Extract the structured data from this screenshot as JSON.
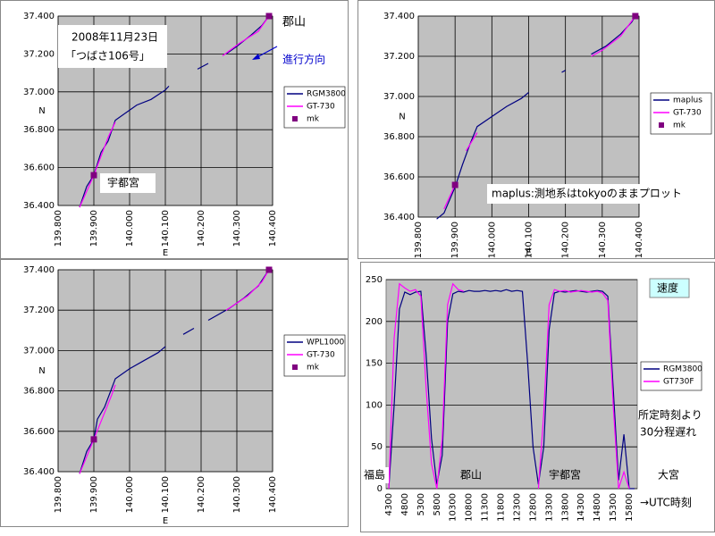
{
  "chart_data": [
    {
      "type": "line",
      "xlabel": "E",
      "ylabel": "N",
      "xlim": [
        139.8,
        140.4
      ],
      "ylim": [
        36.4,
        37.4
      ],
      "xticks": [
        {
          "value": 139.8,
          "label": "139.800"
        },
        {
          "value": 139.9,
          "label": "139.900"
        },
        {
          "value": 140.0,
          "label": "140.000"
        },
        {
          "value": 140.1,
          "label": "140.100"
        },
        {
          "value": 140.2,
          "label": "140.200"
        },
        {
          "value": 140.3,
          "label": "140.300"
        },
        {
          "value": 140.4,
          "label": "140.400"
        }
      ],
      "yticks": [
        {
          "value": 36.4,
          "label": "36.400"
        },
        {
          "value": 36.6,
          "label": "36.600"
        },
        {
          "value": 36.8,
          "label": "36.800"
        },
        {
          "value": 37.0,
          "label": "37.000"
        },
        {
          "value": 37.2,
          "label": "37.200"
        },
        {
          "value": 37.4,
          "label": "37.400"
        }
      ],
      "grid": true,
      "series": [
        {
          "name": "RGM3800",
          "color": "#000080",
          "x": [
            139.86,
            139.88,
            139.9,
            139.92,
            139.94,
            139.96,
            139.99,
            140.02,
            140.06,
            140.1,
            140.11,
            null,
            140.19,
            140.22,
            null,
            140.27,
            140.3,
            140.34,
            140.37,
            140.39
          ],
          "values": [
            36.39,
            36.5,
            36.56,
            36.68,
            36.74,
            36.85,
            36.89,
            36.93,
            36.96,
            37.01,
            37.03,
            null,
            37.12,
            37.15,
            null,
            37.2,
            37.24,
            37.3,
            37.35,
            37.4
          ]
        },
        {
          "name": "GT-730",
          "color": "#ff00ff",
          "x": [
            139.86,
            139.9,
            139.94,
            139.96,
            null,
            140.26,
            140.31,
            140.36,
            140.39
          ],
          "values": [
            36.39,
            36.56,
            36.76,
            36.84,
            null,
            37.19,
            37.26,
            37.32,
            37.4
          ]
        },
        {
          "name": "mk",
          "color": "#800080",
          "style": "marker",
          "x": [
            139.9,
            140.39
          ],
          "values": [
            36.56,
            37.4
          ]
        }
      ],
      "annotations": [
        "2008年11月23日",
        "「つばさ106号」",
        "郡山",
        "進行方向",
        "宇都宮"
      ]
    },
    {
      "type": "line",
      "xlabel": "E",
      "ylabel": "N",
      "xlim": [
        139.8,
        140.4
      ],
      "ylim": [
        36.4,
        37.4
      ],
      "xticks": [
        {
          "value": 139.8,
          "label": "139.800"
        },
        {
          "value": 139.9,
          "label": "139.900"
        },
        {
          "value": 140.0,
          "label": "140.000"
        },
        {
          "value": 140.1,
          "label": "140.100"
        },
        {
          "value": 140.2,
          "label": "140.200"
        },
        {
          "value": 140.3,
          "label": "140.300"
        },
        {
          "value": 140.4,
          "label": "140.400"
        }
      ],
      "yticks": [
        {
          "value": 36.4,
          "label": "36.400"
        },
        {
          "value": 36.6,
          "label": "36.600"
        },
        {
          "value": 36.8,
          "label": "36.800"
        },
        {
          "value": 37.0,
          "label": "37.000"
        },
        {
          "value": 37.2,
          "label": "37.200"
        },
        {
          "value": 37.4,
          "label": "37.400"
        }
      ],
      "grid": true,
      "series": [
        {
          "name": "maplus",
          "color": "#000080",
          "x": [
            139.85,
            139.87,
            139.9,
            139.92,
            139.94,
            139.96,
            140.0,
            140.04,
            140.08,
            140.1,
            null,
            140.19,
            140.2,
            null,
            140.27,
            140.31,
            140.35,
            140.38,
            140.39
          ],
          "values": [
            36.39,
            36.42,
            36.55,
            36.66,
            36.76,
            36.85,
            36.9,
            36.95,
            36.99,
            37.02,
            null,
            37.12,
            37.13,
            null,
            37.21,
            37.25,
            37.31,
            37.37,
            37.4
          ]
        },
        {
          "name": "GT-730",
          "color": "#ff00ff",
          "x": [
            139.87,
            139.89,
            139.9,
            null,
            139.93,
            139.96,
            null,
            140.27,
            140.3,
            140.35,
            140.37,
            140.39
          ],
          "values": [
            36.44,
            36.52,
            36.56,
            null,
            36.73,
            36.82,
            null,
            37.2,
            37.23,
            37.3,
            37.35,
            37.4
          ]
        },
        {
          "name": "mk",
          "color": "#800080",
          "style": "marker",
          "x": [
            139.9,
            140.39
          ],
          "values": [
            36.56,
            37.4
          ]
        }
      ],
      "annotations": [
        "maplus:測地系はtokyoのままプロット"
      ]
    },
    {
      "type": "line",
      "xlabel": "E",
      "ylabel": "N",
      "xlim": [
        139.8,
        140.4
      ],
      "ylim": [
        36.4,
        37.4
      ],
      "xticks": [
        {
          "value": 139.8,
          "label": "139.800"
        },
        {
          "value": 139.9,
          "label": "139.900"
        },
        {
          "value": 140.0,
          "label": "140.000"
        },
        {
          "value": 140.1,
          "label": "140.100"
        },
        {
          "value": 140.2,
          "label": "140.200"
        },
        {
          "value": 140.3,
          "label": "140.300"
        },
        {
          "value": 140.4,
          "label": "140.400"
        }
      ],
      "yticks": [
        {
          "value": 36.4,
          "label": "36.400"
        },
        {
          "value": 36.6,
          "label": "36.600"
        },
        {
          "value": 36.8,
          "label": "36.800"
        },
        {
          "value": 37.0,
          "label": "37.000"
        },
        {
          "value": 37.2,
          "label": "37.200"
        },
        {
          "value": 37.4,
          "label": "37.400"
        }
      ],
      "grid": true,
      "series": [
        {
          "name": "WPL1000",
          "color": "#000080",
          "x": [
            139.86,
            139.88,
            139.9,
            139.91,
            139.93,
            139.96,
            140.0,
            140.04,
            140.08,
            140.1,
            null,
            140.15,
            140.18,
            null,
            140.22,
            140.28,
            140.32,
            140.36,
            140.39
          ],
          "values": [
            36.39,
            36.5,
            36.56,
            36.66,
            36.72,
            36.86,
            36.91,
            36.95,
            36.99,
            37.02,
            null,
            37.08,
            37.11,
            null,
            37.15,
            37.21,
            37.26,
            37.32,
            37.4
          ]
        },
        {
          "name": "GT-730",
          "color": "#ff00ff",
          "x": [
            139.86,
            139.9,
            139.95,
            139.96,
            null,
            140.27,
            140.33,
            140.37,
            140.39
          ],
          "values": [
            36.39,
            36.56,
            36.78,
            36.83,
            null,
            37.2,
            37.27,
            37.34,
            37.4
          ]
        },
        {
          "name": "mk",
          "color": "#800080",
          "style": "marker",
          "x": [
            139.9,
            140.39
          ],
          "values": [
            36.56,
            37.4
          ]
        }
      ]
    },
    {
      "type": "line",
      "ylim": [
        0,
        250
      ],
      "yticks": [
        0,
        50,
        100,
        150,
        200,
        250
      ],
      "grid": true,
      "categories": [
        "4300",
        null,
        null,
        "4800",
        null,
        null,
        "5300",
        null,
        null,
        "5800",
        null,
        null,
        "10300",
        null,
        null,
        "10800",
        null,
        null,
        "11300",
        null,
        null,
        "11800",
        null,
        null,
        "12300",
        null,
        null,
        "12800",
        null,
        null,
        "13300",
        null,
        null,
        "13800",
        null,
        null,
        "14300",
        null,
        null,
        "14800",
        null,
        null,
        "15300",
        null,
        null,
        "15800",
        null
      ],
      "series": [
        {
          "name": "RGM3800",
          "color": "#000080",
          "values": [
            0,
            100,
            215,
            235,
            232,
            235,
            236,
            160,
            60,
            5,
            40,
            200,
            233,
            236,
            235,
            237,
            236,
            236,
            237,
            236,
            237,
            236,
            238,
            236,
            237,
            236,
            150,
            50,
            5,
            50,
            190,
            234,
            236,
            235,
            236,
            237,
            236,
            235,
            236,
            237,
            236,
            230,
            120,
            10,
            65,
            0,
            0
          ]
        },
        {
          "name": "GT730F",
          "color": "#ff00ff",
          "values": [
            0,
            180,
            245,
            240,
            236,
            238,
            230,
            120,
            30,
            0,
            60,
            220,
            245,
            238,
            236,
            null,
            null,
            null,
            null,
            null,
            null,
            null,
            null,
            null,
            null,
            null,
            null,
            null,
            0,
            90,
            220,
            238,
            236,
            237,
            235,
            236,
            237,
            236,
            235,
            236,
            234,
            225,
            100,
            0,
            20,
            0,
            null
          ]
        }
      ],
      "annotations": [
        "速度",
        "所定時刻より",
        "30分程遅れ",
        "福島",
        "郡山",
        "宇都宮",
        "大宮",
        "→UTC時刻"
      ]
    }
  ]
}
